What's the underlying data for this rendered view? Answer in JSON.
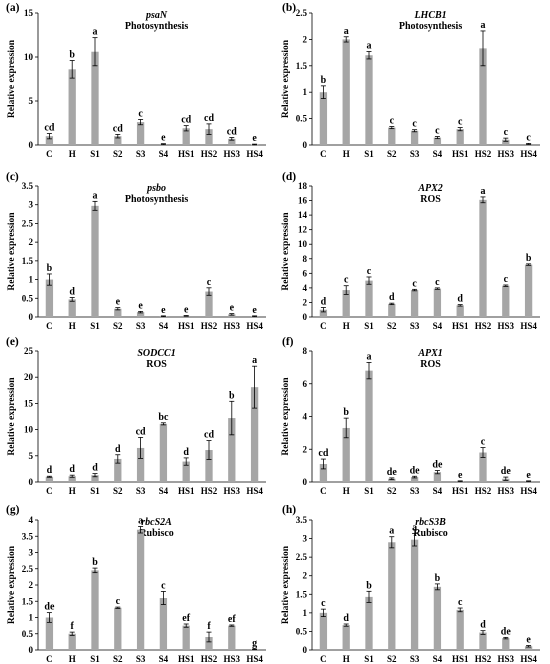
{
  "chart_data": [
    {
      "type": "bar",
      "panel": "(a)",
      "gene": "psaN",
      "group": "Photosynthesis",
      "ylabel": "Relative expression",
      "ylim": [
        0,
        15
      ],
      "yticks": [
        "0",
        "5",
        "10",
        "15"
      ],
      "categories": [
        "C",
        "H",
        "S1",
        "S2",
        "S3",
        "S4",
        "HS1",
        "HS2",
        "HS3",
        "HS4"
      ],
      "values": [
        1.0,
        8.6,
        10.6,
        1.0,
        2.6,
        0.1,
        1.9,
        1.8,
        0.7,
        0.05
      ],
      "errors": [
        0.3,
        1.0,
        1.6,
        0.2,
        0.3,
        0.05,
        0.3,
        0.6,
        0.15,
        0.05
      ],
      "labels": [
        "cd",
        "b",
        "a",
        "cd",
        "c",
        "e",
        "cd",
        "cd",
        "cd",
        "e"
      ],
      "color": "#a6a6a6"
    },
    {
      "type": "bar",
      "panel": "(b)",
      "gene": "LHCB1",
      "group": "Photosynthesis",
      "ylabel": "Relative expression",
      "ylim": [
        0,
        2.5
      ],
      "yticks": [
        "0",
        "0.5",
        "1",
        "1.5",
        "2",
        "2.5"
      ],
      "categories": [
        "C",
        "H",
        "S1",
        "S2",
        "S3",
        "S4",
        "HS1",
        "HS2",
        "HS3",
        "HS4"
      ],
      "values": [
        1.0,
        2.0,
        1.7,
        0.33,
        0.27,
        0.14,
        0.3,
        1.83,
        0.1,
        0.02
      ],
      "errors": [
        0.12,
        0.05,
        0.07,
        0.02,
        0.02,
        0.02,
        0.03,
        0.33,
        0.03,
        0.01
      ],
      "labels": [
        "b",
        "a",
        "a",
        "c",
        "c",
        "c",
        "c",
        "a",
        "c",
        "c"
      ],
      "color": "#a6a6a6"
    },
    {
      "type": "bar",
      "panel": "(c)",
      "gene": "psbo",
      "group": "Photosynthesis",
      "ylabel": "Relative expression",
      "ylim": [
        0,
        3.5
      ],
      "yticks": [
        "0",
        "0.5",
        "1",
        "1.5",
        "2",
        "2.5",
        "3",
        "3.5"
      ],
      "categories": [
        "C",
        "H",
        "S1",
        "S2",
        "S3",
        "S4",
        "HS1",
        "HS2",
        "HS3",
        "HS4"
      ],
      "values": [
        1.0,
        0.47,
        2.97,
        0.22,
        0.13,
        0.02,
        0.03,
        0.68,
        0.07,
        0.02
      ],
      "errors": [
        0.15,
        0.05,
        0.12,
        0.03,
        0.02,
        0.01,
        0.01,
        0.1,
        0.02,
        0.01
      ],
      "labels": [
        "b",
        "d",
        "a",
        "e",
        "e",
        "e",
        "e",
        "c",
        "e",
        "e"
      ],
      "color": "#a6a6a6"
    },
    {
      "type": "bar",
      "panel": "(d)",
      "gene": "APX2",
      "group": "ROS",
      "ylabel": "Relative expression",
      "ylim": [
        0,
        18
      ],
      "yticks": [
        "0",
        "2",
        "4",
        "6",
        "8",
        "10",
        "12",
        "14",
        "16",
        "18"
      ],
      "categories": [
        "C",
        "H",
        "S1",
        "S2",
        "S3",
        "S4",
        "HS1",
        "HS2",
        "HS3",
        "HS4"
      ],
      "values": [
        1.0,
        3.7,
        5.0,
        1.8,
        3.7,
        3.9,
        1.6,
        16.1,
        4.3,
        7.2
      ],
      "errors": [
        0.3,
        0.6,
        0.5,
        0.1,
        0.1,
        0.1,
        0.1,
        0.4,
        0.1,
        0.1
      ],
      "labels": [
        "d",
        "c",
        "c",
        "d",
        "c",
        "c",
        "d",
        "a",
        "c",
        "b"
      ],
      "color": "#a6a6a6"
    },
    {
      "type": "bar",
      "panel": "(e)",
      "gene": "SODCC1",
      "group": "ROS",
      "ylabel": "Relative expression",
      "ylim": [
        0,
        25
      ],
      "yticks": [
        "0",
        "5",
        "10",
        "15",
        "20",
        "25"
      ],
      "categories": [
        "C",
        "H",
        "S1",
        "S2",
        "S3",
        "S4",
        "HS1",
        "HS2",
        "HS3",
        "HS4"
      ],
      "values": [
        1.0,
        1.1,
        1.3,
        4.4,
        6.5,
        11.1,
        3.9,
        6.1,
        12.2,
        18.1
      ],
      "errors": [
        0.1,
        0.2,
        0.3,
        0.8,
        2.0,
        0.2,
        0.7,
        1.8,
        3.2,
        4.0
      ],
      "labels": [
        "d",
        "d",
        "d",
        "d",
        "cd",
        "bc",
        "d",
        "cd",
        "b",
        "a"
      ],
      "color": "#a6a6a6"
    },
    {
      "type": "bar",
      "panel": "(f)",
      "gene": "APX1",
      "group": "ROS",
      "ylabel": "Relative expression",
      "ylim": [
        0,
        8
      ],
      "yticks": [
        "0",
        "2",
        "4",
        "6",
        "8"
      ],
      "categories": [
        "C",
        "H",
        "S1",
        "S2",
        "S3",
        "S4",
        "HS1",
        "HS2",
        "HS3",
        "HS4"
      ],
      "values": [
        1.1,
        3.3,
        6.8,
        0.2,
        0.3,
        0.6,
        0.05,
        1.8,
        0.2,
        0.05
      ],
      "errors": [
        0.3,
        0.6,
        0.5,
        0.05,
        0.05,
        0.1,
        0.02,
        0.3,
        0.1,
        0.02
      ],
      "labels": [
        "cd",
        "b",
        "a",
        "de",
        "de",
        "de",
        "e",
        "c",
        "de",
        "e"
      ],
      "color": "#a6a6a6"
    },
    {
      "type": "bar",
      "panel": "(g)",
      "gene": "rbcS2A",
      "group": "Rubisco",
      "ylabel": "Relative expression",
      "ylim": [
        0,
        4
      ],
      "yticks": [
        "0",
        "0.5",
        "1",
        "1.5",
        "2",
        "2.5",
        "3",
        "3.5",
        "4"
      ],
      "categories": [
        "C",
        "H",
        "S1",
        "S2",
        "S3",
        "S4",
        "HS1",
        "HS2",
        "HS3",
        "HS4"
      ],
      "values": [
        1.0,
        0.5,
        2.45,
        1.3,
        3.7,
        1.6,
        0.75,
        0.4,
        0.75,
        0.02
      ],
      "errors": [
        0.15,
        0.05,
        0.07,
        0.02,
        0.1,
        0.2,
        0.05,
        0.15,
        0.02,
        0.01
      ],
      "labels": [
        "de",
        "f",
        "b",
        "c",
        "a",
        "c",
        "ef",
        "f",
        "ef",
        "g"
      ],
      "color": "#a6a6a6"
    },
    {
      "type": "bar",
      "panel": "(h)",
      "gene": "rbcS3B",
      "group": "Rubisco",
      "ylabel": "Relative expression",
      "ylim": [
        0,
        3.5
      ],
      "yticks": [
        "0",
        "0.5",
        "1",
        "1.5",
        "2",
        "2.5",
        "3",
        "3.5"
      ],
      "categories": [
        "C",
        "H",
        "S1",
        "S2",
        "S3",
        "S4",
        "HS1",
        "HS2",
        "HS3",
        "HS4"
      ],
      "values": [
        1.0,
        0.67,
        1.43,
        2.9,
        2.97,
        1.7,
        1.08,
        0.47,
        0.32,
        0.1
      ],
      "errors": [
        0.1,
        0.03,
        0.15,
        0.15,
        0.17,
        0.08,
        0.05,
        0.05,
        0.02,
        0.02
      ],
      "labels": [
        "c",
        "d",
        "b",
        "a",
        "a",
        "b",
        "c",
        "d",
        "de",
        "e"
      ],
      "color": "#a6a6a6"
    }
  ]
}
